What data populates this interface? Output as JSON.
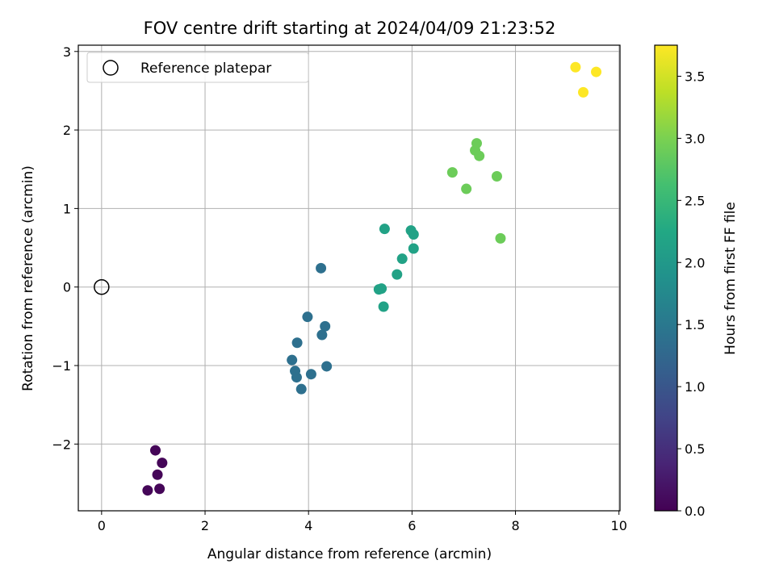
{
  "chart_data": {
    "type": "scatter",
    "title": "FOV centre drift starting at 2024/04/09 21:23:52",
    "xlabel": "Angular distance from reference (arcmin)",
    "ylabel": "Rotation from reference (arcmin)",
    "xlim": [
      -0.45,
      10.02
    ],
    "ylim": [
      -2.85,
      3.08
    ],
    "xticks": [
      0,
      2,
      4,
      6,
      8,
      10
    ],
    "yticks": [
      -2,
      -1,
      0,
      1,
      2,
      3
    ],
    "xtick_labels": [
      "0",
      "2",
      "4",
      "6",
      "8",
      "10"
    ],
    "ytick_labels": [
      "−2",
      "−1",
      "0",
      "1",
      "2",
      "3"
    ],
    "grid": true,
    "legend": {
      "position": "upper-left",
      "entries": [
        {
          "label": "Reference platepar",
          "marker": "open-circle"
        }
      ]
    },
    "reference_point": {
      "x": 0,
      "y": 0
    },
    "colorbar": {
      "label": "Hours from first FF file",
      "colormap": "viridis",
      "range": [
        0.0,
        3.75
      ],
      "ticks": [
        0.0,
        0.5,
        1.0,
        1.5,
        2.0,
        2.5,
        3.0,
        3.5
      ],
      "tick_labels": [
        "0.0",
        "0.5",
        "1.0",
        "1.5",
        "2.0",
        "2.5",
        "3.0",
        "3.5"
      ]
    },
    "series": [
      {
        "points": [
          {
            "x": 1.04,
            "y": -2.08,
            "c": 0.05
          },
          {
            "x": 1.17,
            "y": -2.24,
            "c": 0.05
          },
          {
            "x": 1.08,
            "y": -2.39,
            "c": 0.05
          },
          {
            "x": 0.89,
            "y": -2.59,
            "c": 0.05
          },
          {
            "x": 1.12,
            "y": -2.57,
            "c": 0.05
          },
          {
            "x": 4.24,
            "y": 0.24,
            "c": 1.38
          },
          {
            "x": 3.98,
            "y": -0.38,
            "c": 1.38
          },
          {
            "x": 4.32,
            "y": -0.5,
            "c": 1.38
          },
          {
            "x": 4.26,
            "y": -0.61,
            "c": 1.38
          },
          {
            "x": 3.78,
            "y": -0.71,
            "c": 1.38
          },
          {
            "x": 3.68,
            "y": -0.93,
            "c": 1.38
          },
          {
            "x": 4.35,
            "y": -1.01,
            "c": 1.38
          },
          {
            "x": 3.74,
            "y": -1.07,
            "c": 1.38
          },
          {
            "x": 4.05,
            "y": -1.11,
            "c": 1.38
          },
          {
            "x": 3.77,
            "y": -1.15,
            "c": 1.38
          },
          {
            "x": 3.86,
            "y": -1.3,
            "c": 1.38
          },
          {
            "x": 5.47,
            "y": 0.74,
            "c": 2.15
          },
          {
            "x": 5.98,
            "y": 0.72,
            "c": 2.15
          },
          {
            "x": 6.03,
            "y": 0.67,
            "c": 2.15
          },
          {
            "x": 6.03,
            "y": 0.49,
            "c": 2.15
          },
          {
            "x": 5.81,
            "y": 0.36,
            "c": 2.15
          },
          {
            "x": 5.71,
            "y": 0.16,
            "c": 2.15
          },
          {
            "x": 5.36,
            "y": -0.03,
            "c": 2.15
          },
          {
            "x": 5.41,
            "y": -0.02,
            "c": 2.15
          },
          {
            "x": 5.45,
            "y": -0.25,
            "c": 2.15
          },
          {
            "x": 7.25,
            "y": 1.83,
            "c": 2.9
          },
          {
            "x": 7.22,
            "y": 1.74,
            "c": 2.9
          },
          {
            "x": 7.3,
            "y": 1.67,
            "c": 2.9
          },
          {
            "x": 6.78,
            "y": 1.46,
            "c": 2.9
          },
          {
            "x": 7.64,
            "y": 1.41,
            "c": 2.9
          },
          {
            "x": 7.05,
            "y": 1.25,
            "c": 2.9
          },
          {
            "x": 7.71,
            "y": 0.62,
            "c": 2.9
          },
          {
            "x": 9.16,
            "y": 2.8,
            "c": 3.75
          },
          {
            "x": 9.56,
            "y": 2.74,
            "c": 3.75
          },
          {
            "x": 9.31,
            "y": 2.48,
            "c": 3.75
          }
        ]
      }
    ]
  }
}
